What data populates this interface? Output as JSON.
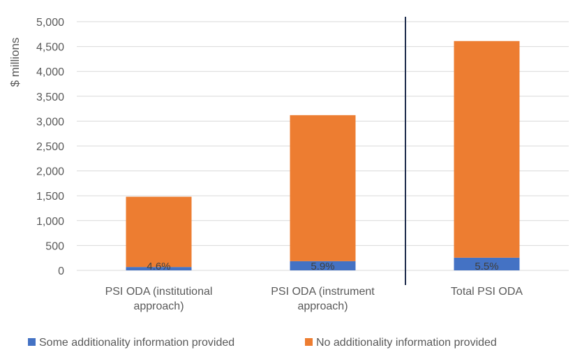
{
  "chart_data": {
    "type": "bar",
    "stacked": true,
    "title": "",
    "xlabel": "",
    "ylabel": "$ millions",
    "ylim": [
      0,
      5000
    ],
    "yticks": [
      0,
      500,
      1000,
      1500,
      2000,
      2500,
      3000,
      3500,
      4000,
      4500,
      5000
    ],
    "ytick_labels": [
      "0",
      "500",
      "1,000",
      "1,500",
      "2,000",
      "2,500",
      "3,000",
      "3,500",
      "4,000",
      "4,500",
      "5,000"
    ],
    "categories": [
      [
        "PSI ODA (institutional",
        "approach)"
      ],
      [
        "PSI ODA (instrument",
        "approach)"
      ],
      [
        "Total PSI ODA"
      ]
    ],
    "series": [
      {
        "name": "Some additionality information provided",
        "color": "#4472c4",
        "values": [
          68,
          185,
          255
        ]
      },
      {
        "name": "No additionality information provided",
        "color": "#ed7d31",
        "values": [
          1412,
          2935,
          4355
        ]
      }
    ],
    "data_labels": [
      "4.6%",
      "5.9%",
      "5.5%"
    ],
    "separator_after_category": 1,
    "legend_position": "bottom"
  }
}
